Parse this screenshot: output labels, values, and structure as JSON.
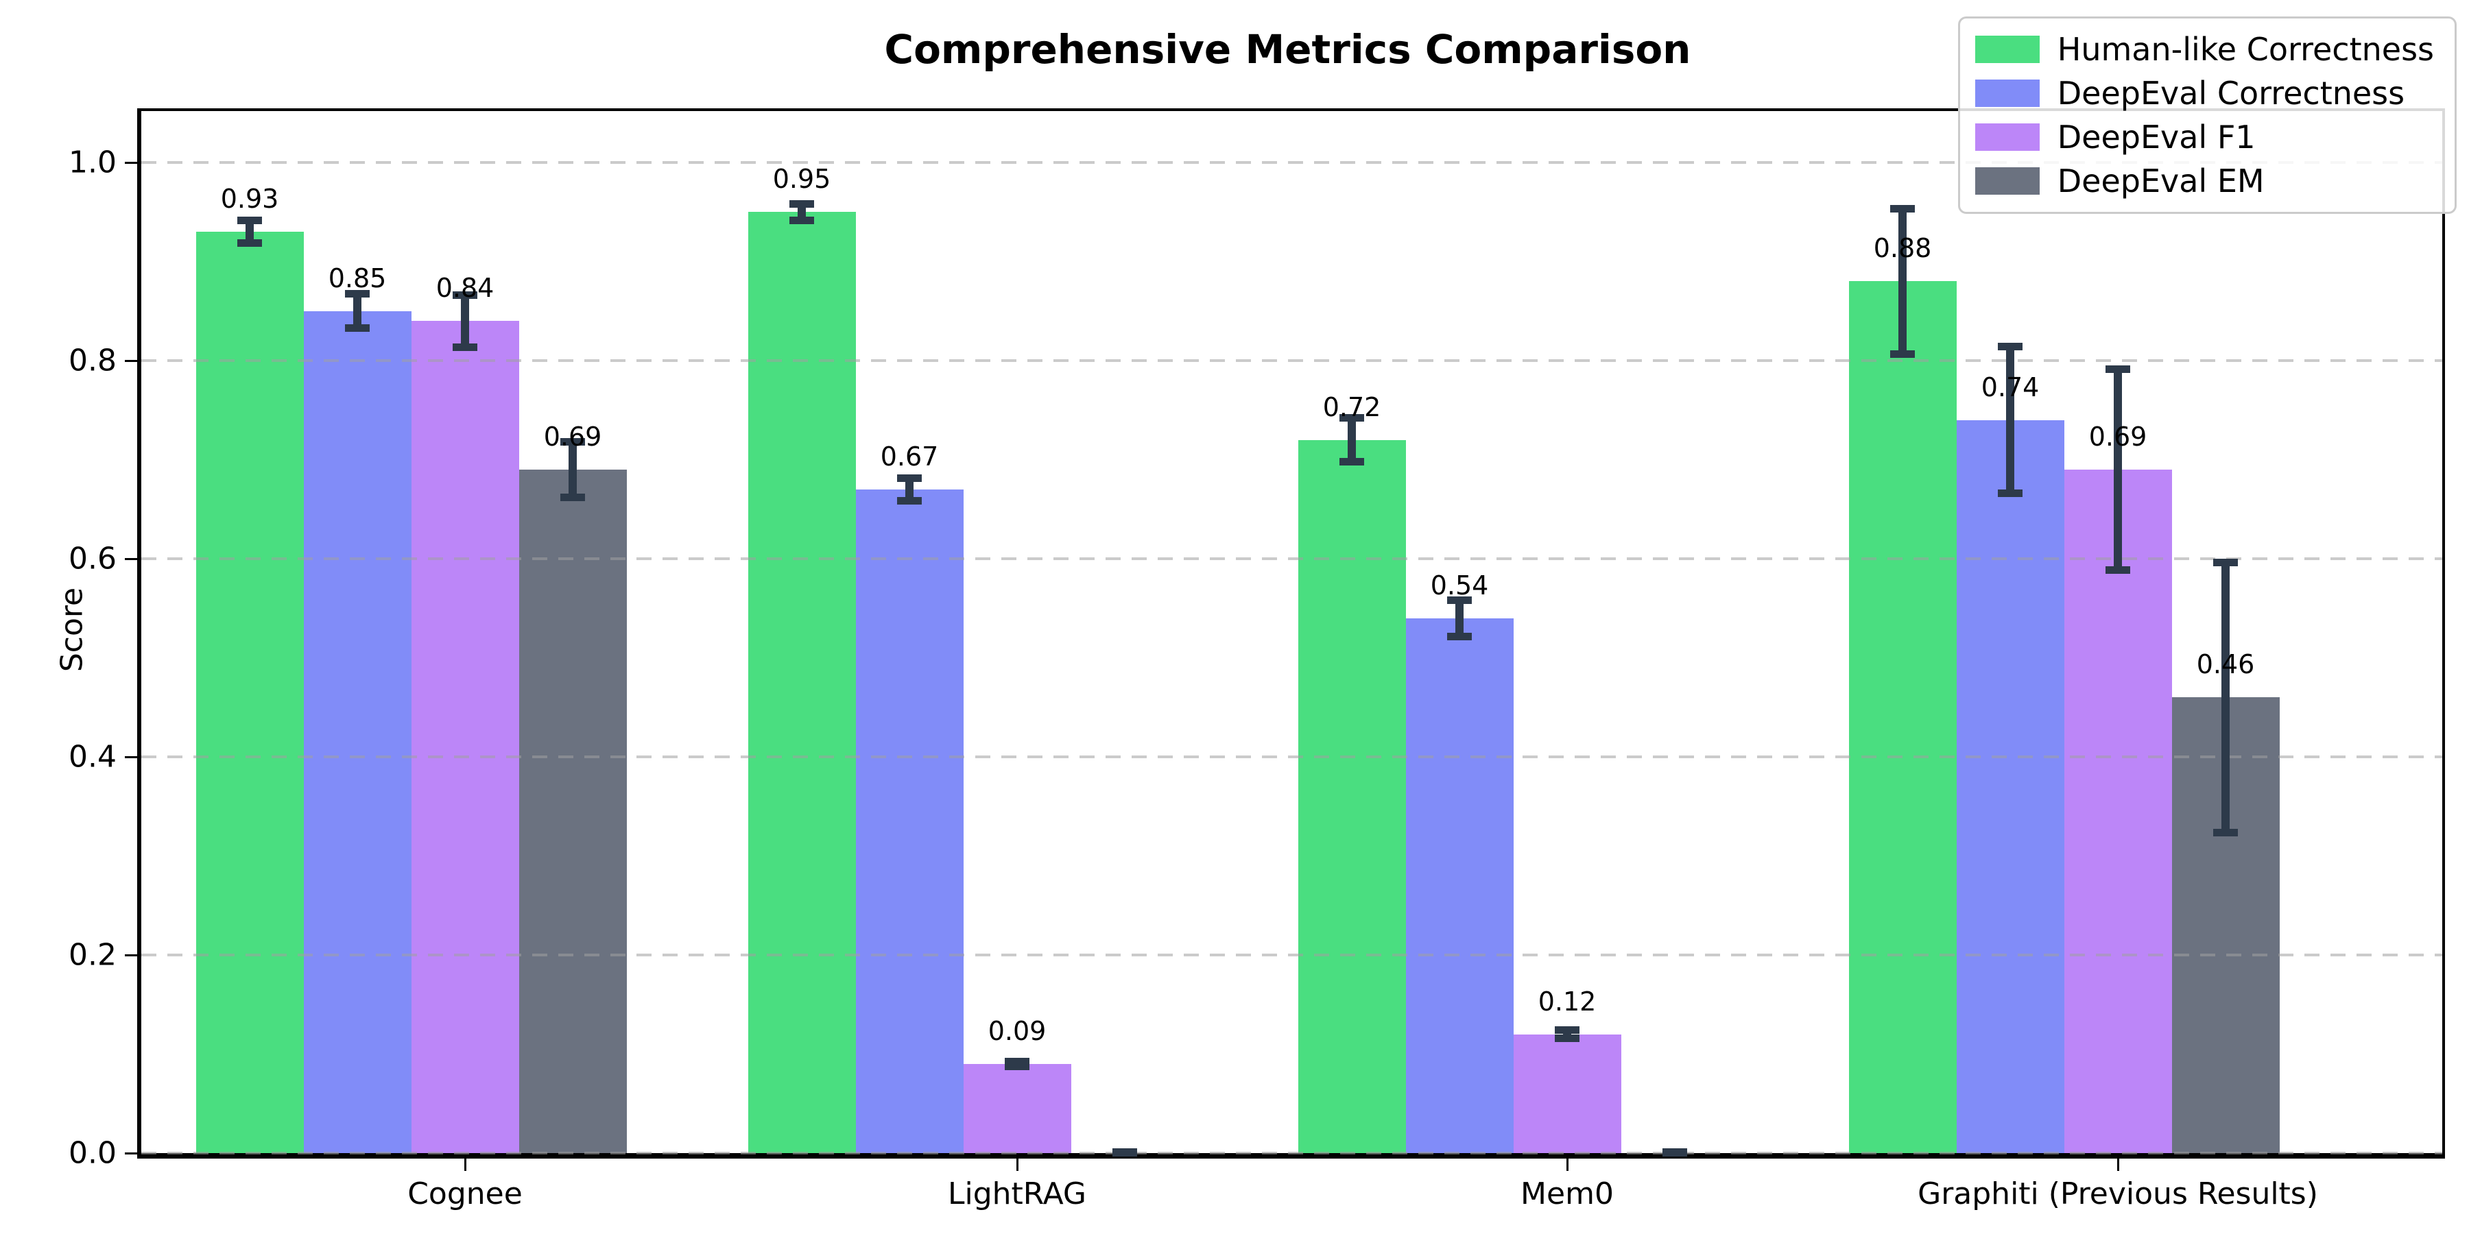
{
  "chart_data": {
    "type": "bar",
    "title": "Comprehensive Metrics Comparison",
    "xlabel": "",
    "ylabel": "Score",
    "categories": [
      "Cognee",
      "LightRAG",
      "Mem0",
      "Graphiti (Previous Results)"
    ],
    "series": [
      {
        "name": "Human-like Correctness",
        "color": "#4ade80",
        "values": [
          0.93,
          0.95,
          0.72,
          0.88
        ],
        "errors": [
          0.015,
          0.012,
          0.026,
          0.077
        ],
        "bar_labels": [
          "0.93",
          "0.95",
          "0.72",
          "0.88"
        ]
      },
      {
        "name": "DeepEval Correctness",
        "color": "#818cf8",
        "values": [
          0.85,
          0.67,
          0.54,
          0.74
        ],
        "errors": [
          0.021,
          0.015,
          0.022,
          0.078
        ],
        "bar_labels": [
          "0.85",
          "0.67",
          "0.54",
          "0.74"
        ]
      },
      {
        "name": "DeepEval F1",
        "color": "#bc86f8",
        "values": [
          0.84,
          0.09,
          0.12,
          0.69
        ],
        "errors": [
          0.03,
          0.006,
          0.008,
          0.105
        ],
        "bar_labels": [
          "0.84",
          "0.09",
          "0.12",
          "0.69"
        ]
      },
      {
        "name": "DeepEval EM",
        "color": "#6b7280",
        "values": [
          0.69,
          0.0,
          0.0,
          0.46
        ],
        "errors": [
          0.032,
          0.004,
          0.004,
          0.14
        ],
        "bar_labels": [
          "0.69",
          "",
          "",
          "0.46"
        ]
      }
    ],
    "y_ticks": [
      "0.0",
      "0.2",
      "0.4",
      "0.6",
      "0.8",
      "1.0"
    ],
    "y_tick_values": [
      0.0,
      0.2,
      0.4,
      0.6,
      0.8,
      1.0
    ],
    "ylim": [
      0,
      1.052
    ],
    "grid": "horizontal-dashed",
    "grid_above_bars": true,
    "legend_position": "upper-right",
    "error_bar_color": "#2d3a4a",
    "background_color": "#ffffff"
  }
}
